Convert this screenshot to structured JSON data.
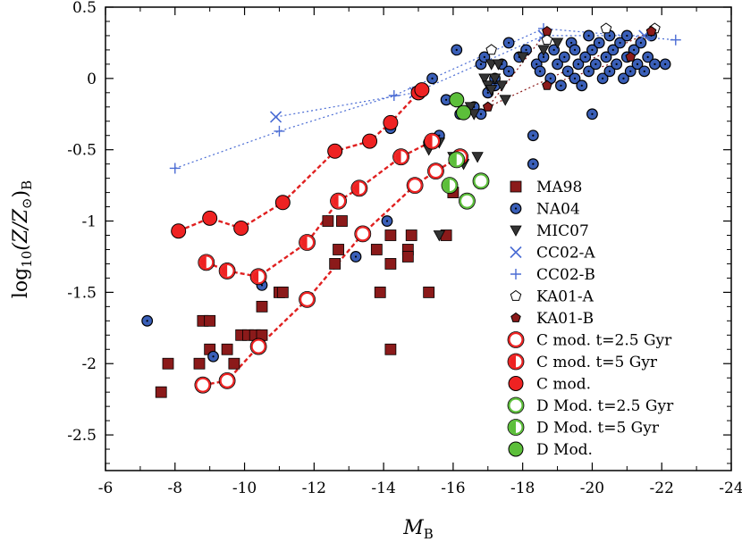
{
  "chart_data": {
    "type": "scatter",
    "title": "",
    "xlabel": "M_B",
    "ylabel": "log10(Z/Z⊙)_B",
    "xlabel_parts": {
      "main": "M",
      "sub": "B"
    },
    "ylabel_parts": {
      "func": "log",
      "func_sub": "10",
      "expr": "(Z/Z",
      "sun": "⊙",
      "close": ")",
      "sub": "B"
    },
    "xlim": [
      -6,
      -24
    ],
    "ylim": [
      -2.75,
      0.5
    ],
    "x_ticks": [
      -6,
      -8,
      -10,
      -12,
      -14,
      -16,
      -18,
      -20,
      -22,
      -24
    ],
    "x_tick_labels": [
      "-6",
      "-8",
      "-10",
      "-12",
      "-14",
      "-16",
      "-18",
      "-20",
      "-22",
      "-24"
    ],
    "y_ticks": [
      0.5,
      0,
      -0.5,
      -1,
      -1.5,
      -2,
      -2.5
    ],
    "y_tick_labels": [
      "0.5",
      "0",
      "-0.5",
      "-1",
      "-1.5",
      "-2",
      "-2.5"
    ],
    "grid": false,
    "legend_position": "lower-right",
    "colors": {
      "ma98": "#8b1a1a",
      "na04": "#3a5fb8",
      "mic07": "#333333",
      "cc02": "#4a6cd4",
      "ka01b": "#8b1a1a",
      "cmod": "#ee2222",
      "cline": "#e02020",
      "dmod": "#5cbf3a"
    },
    "series": [
      {
        "name": "MA98",
        "marker": "square",
        "color": "ma98",
        "points": [
          [
            -7.6,
            -2.2
          ],
          [
            -7.8,
            -2.0
          ],
          [
            -8.7,
            -2.0
          ],
          [
            -8.8,
            -1.7
          ],
          [
            -9.0,
            -1.7
          ],
          [
            -9.0,
            -1.9
          ],
          [
            -9.5,
            -1.9
          ],
          [
            -9.7,
            -2.0
          ],
          [
            -9.9,
            -1.8
          ],
          [
            -10.1,
            -1.8
          ],
          [
            -10.3,
            -1.8
          ],
          [
            -10.5,
            -1.6
          ],
          [
            -10.5,
            -1.8
          ],
          [
            -11.0,
            -1.5
          ],
          [
            -11.1,
            -1.5
          ],
          [
            -12.4,
            -1.0
          ],
          [
            -12.8,
            -1.0
          ],
          [
            -12.7,
            -1.2
          ],
          [
            -12.6,
            -1.3
          ],
          [
            -13.8,
            -1.2
          ],
          [
            -13.9,
            -1.5
          ],
          [
            -14.2,
            -1.1
          ],
          [
            -14.2,
            -1.3
          ],
          [
            -14.2,
            -1.9
          ],
          [
            -14.7,
            -1.2
          ],
          [
            -14.7,
            -1.25
          ],
          [
            -14.8,
            -1.1
          ],
          [
            -15.3,
            -1.5
          ],
          [
            -15.8,
            -1.1
          ],
          [
            -16.0,
            -0.8
          ]
        ]
      },
      {
        "name": "NA04",
        "marker": "circle",
        "color": "na04",
        "points": [
          [
            -7.2,
            -1.7
          ],
          [
            -9.1,
            -1.95
          ],
          [
            -10.5,
            -1.45
          ],
          [
            -13.2,
            -1.25
          ],
          [
            -14.1,
            -1.0
          ],
          [
            -14.2,
            -0.35
          ],
          [
            -15.3,
            -0.45
          ],
          [
            -15.6,
            -0.4
          ],
          [
            -15.8,
            -0.15
          ],
          [
            -16.2,
            -0.25
          ],
          [
            -16.6,
            -0.2
          ],
          [
            -16.8,
            -0.25
          ],
          [
            -17.0,
            -0.1
          ],
          [
            -17.2,
            -0.05
          ],
          [
            -16.8,
            0.1
          ],
          [
            -16.9,
            0.15
          ],
          [
            -17.2,
            0.0
          ],
          [
            -17.4,
            0.1
          ],
          [
            -17.6,
            0.05
          ],
          [
            -17.9,
            0.15
          ],
          [
            -18.1,
            0.2
          ],
          [
            -18.3,
            -0.4
          ],
          [
            -18.3,
            -0.6
          ],
          [
            -18.4,
            0.1
          ],
          [
            -18.5,
            0.05
          ],
          [
            -18.6,
            0.15
          ],
          [
            -18.8,
            0.0
          ],
          [
            -18.9,
            0.2
          ],
          [
            -19.0,
            0.1
          ],
          [
            -19.1,
            -0.05
          ],
          [
            -19.2,
            0.15
          ],
          [
            -19.3,
            0.05
          ],
          [
            -19.4,
            0.25
          ],
          [
            -19.5,
            0.0
          ],
          [
            -19.5,
            0.2
          ],
          [
            -19.6,
            0.1
          ],
          [
            -19.7,
            -0.05
          ],
          [
            -19.8,
            0.15
          ],
          [
            -19.9,
            0.3
          ],
          [
            -19.9,
            0.05
          ],
          [
            -20.0,
            -0.25
          ],
          [
            -20.0,
            0.2
          ],
          [
            -20.1,
            0.1
          ],
          [
            -20.2,
            0.25
          ],
          [
            -20.3,
            0.0
          ],
          [
            -20.4,
            0.15
          ],
          [
            -20.5,
            0.3
          ],
          [
            -20.5,
            0.05
          ],
          [
            -20.6,
            0.2
          ],
          [
            -20.7,
            0.1
          ],
          [
            -20.8,
            0.25
          ],
          [
            -20.9,
            0.0
          ],
          [
            -21.0,
            0.15
          ],
          [
            -21.0,
            0.3
          ],
          [
            -21.1,
            0.05
          ],
          [
            -21.2,
            0.2
          ],
          [
            -21.3,
            0.1
          ],
          [
            -21.4,
            0.25
          ],
          [
            -21.5,
            0.05
          ],
          [
            -21.6,
            0.15
          ],
          [
            -21.7,
            0.3
          ],
          [
            -21.8,
            0.1
          ],
          [
            -22.1,
            0.1
          ],
          [
            -15.4,
            0.0
          ],
          [
            -16.1,
            0.2
          ],
          [
            -17.6,
            0.25
          ]
        ]
      },
      {
        "name": "MIC07",
        "marker": "triangle",
        "color": "mic07",
        "points": [
          [
            -15.3,
            -0.5
          ],
          [
            -15.6,
            -0.45
          ],
          [
            -15.6,
            -1.1
          ],
          [
            -16.0,
            -0.55
          ],
          [
            -16.3,
            -0.6
          ],
          [
            -16.5,
            -0.2
          ],
          [
            -16.6,
            -0.25
          ],
          [
            -16.7,
            -0.55
          ],
          [
            -16.9,
            0.0
          ],
          [
            -17.0,
            -0.05
          ],
          [
            -17.1,
            -0.08
          ],
          [
            -17.2,
            0.0
          ],
          [
            -17.4,
            -0.05
          ],
          [
            -17.5,
            -0.15
          ],
          [
            -17.1,
            0.1
          ],
          [
            -17.3,
            0.1
          ],
          [
            -18.0,
            0.15
          ],
          [
            -18.6,
            0.2
          ],
          [
            -19.0,
            0.25
          ]
        ]
      },
      {
        "name": "CC02-A",
        "marker": "x",
        "color": "cc02",
        "line": "dotted",
        "points": [
          [
            -10.9,
            -0.27
          ],
          [
            -14.9,
            -0.1
          ],
          [
            -18.6,
            0.3
          ],
          [
            -21.5,
            0.3
          ]
        ]
      },
      {
        "name": "CC02-B",
        "marker": "plus",
        "color": "cc02",
        "line": "dotted",
        "points": [
          [
            -8.0,
            -0.63
          ],
          [
            -11.0,
            -0.37
          ],
          [
            -14.3,
            -0.12
          ],
          [
            -18.6,
            0.35
          ],
          [
            -22.4,
            0.27
          ]
        ]
      },
      {
        "name": "KA01-A",
        "marker": "pentagon-open",
        "color": "ka01b",
        "points": [
          [
            -17.1,
            0.2
          ],
          [
            -18.7,
            0.27
          ],
          [
            -20.4,
            0.35
          ],
          [
            -21.8,
            0.35
          ]
        ]
      },
      {
        "name": "KA01-B",
        "marker": "pentagon",
        "color": "ka01b",
        "line": "dotted",
        "points": [
          [
            -18.7,
            -0.05
          ],
          [
            -21.1,
            0.15
          ],
          [
            -21.7,
            0.33
          ],
          [
            -17.0,
            -0.2
          ],
          [
            -18.7,
            0.33
          ]
        ]
      },
      {
        "name": "C mod. t=2.5 Gyr",
        "marker": "circle-open",
        "color": "cmod",
        "line": "dashed",
        "points": [
          [
            -8.8,
            -2.15
          ],
          [
            -9.5,
            -2.12
          ],
          [
            -10.4,
            -1.88
          ],
          [
            -11.8,
            -1.55
          ],
          [
            -13.4,
            -1.09
          ],
          [
            -14.9,
            -0.75
          ],
          [
            -15.5,
            -0.65
          ],
          [
            -16.2,
            -0.55
          ]
        ]
      },
      {
        "name": "C mod. t=5 Gyr",
        "marker": "circle-half",
        "color": "cmod",
        "line": "dashed",
        "points": [
          [
            -8.9,
            -1.29
          ],
          [
            -9.5,
            -1.35
          ],
          [
            -10.4,
            -1.39
          ],
          [
            -11.8,
            -1.15
          ],
          [
            -12.7,
            -0.86
          ],
          [
            -13.3,
            -0.77
          ],
          [
            -14.5,
            -0.55
          ],
          [
            -15.4,
            -0.44
          ]
        ]
      },
      {
        "name": "C mod.",
        "marker": "circle-filled",
        "color": "cmod",
        "line": "dashed",
        "points": [
          [
            -8.1,
            -1.07
          ],
          [
            -9.0,
            -0.98
          ],
          [
            -9.9,
            -1.05
          ],
          [
            -11.1,
            -0.87
          ],
          [
            -12.6,
            -0.51
          ],
          [
            -13.6,
            -0.44
          ],
          [
            -14.2,
            -0.31
          ],
          [
            -15.0,
            -0.1
          ],
          [
            -15.1,
            -0.08
          ]
        ]
      },
      {
        "name": "D Mod. t=2.5 Gyr",
        "marker": "circle-open",
        "color": "dmod",
        "points": [
          [
            -16.4,
            -0.86
          ],
          [
            -16.8,
            -0.72
          ]
        ]
      },
      {
        "name": "D Mod. t=5 Gyr",
        "marker": "circle-half",
        "color": "dmod",
        "points": [
          [
            -15.9,
            -0.75
          ],
          [
            -16.1,
            -0.57
          ]
        ]
      },
      {
        "name": "D Mod.",
        "marker": "circle-filled",
        "color": "dmod",
        "points": [
          [
            -16.1,
            -0.15
          ],
          [
            -16.3,
            -0.24
          ]
        ]
      }
    ],
    "legend": [
      {
        "label": "MA98",
        "marker": "square",
        "color": "ma98"
      },
      {
        "label": "NA04",
        "marker": "circle",
        "color": "na04"
      },
      {
        "label": "MIC07",
        "marker": "triangle",
        "color": "mic07"
      },
      {
        "label": "CC02-A",
        "marker": "x",
        "color": "cc02"
      },
      {
        "label": "CC02-B",
        "marker": "plus",
        "color": "cc02"
      },
      {
        "label": "KA01-A",
        "marker": "pentagon-open",
        "color": "ka01b"
      },
      {
        "label": "KA01-B",
        "marker": "pentagon",
        "color": "ka01b"
      },
      {
        "label": "C mod. t=2.5 Gyr",
        "marker": "circle-open",
        "color": "cmod"
      },
      {
        "label": "C mod. t=5 Gyr",
        "marker": "circle-half",
        "color": "cmod"
      },
      {
        "label": "C mod.",
        "marker": "circle-filled",
        "color": "cmod"
      },
      {
        "label": "D Mod. t=2.5 Gyr",
        "marker": "circle-open",
        "color": "dmod"
      },
      {
        "label": "D Mod. t=5 Gyr",
        "marker": "circle-half",
        "color": "dmod"
      },
      {
        "label": "D Mod.",
        "marker": "circle-filled",
        "color": "dmod"
      }
    ]
  }
}
